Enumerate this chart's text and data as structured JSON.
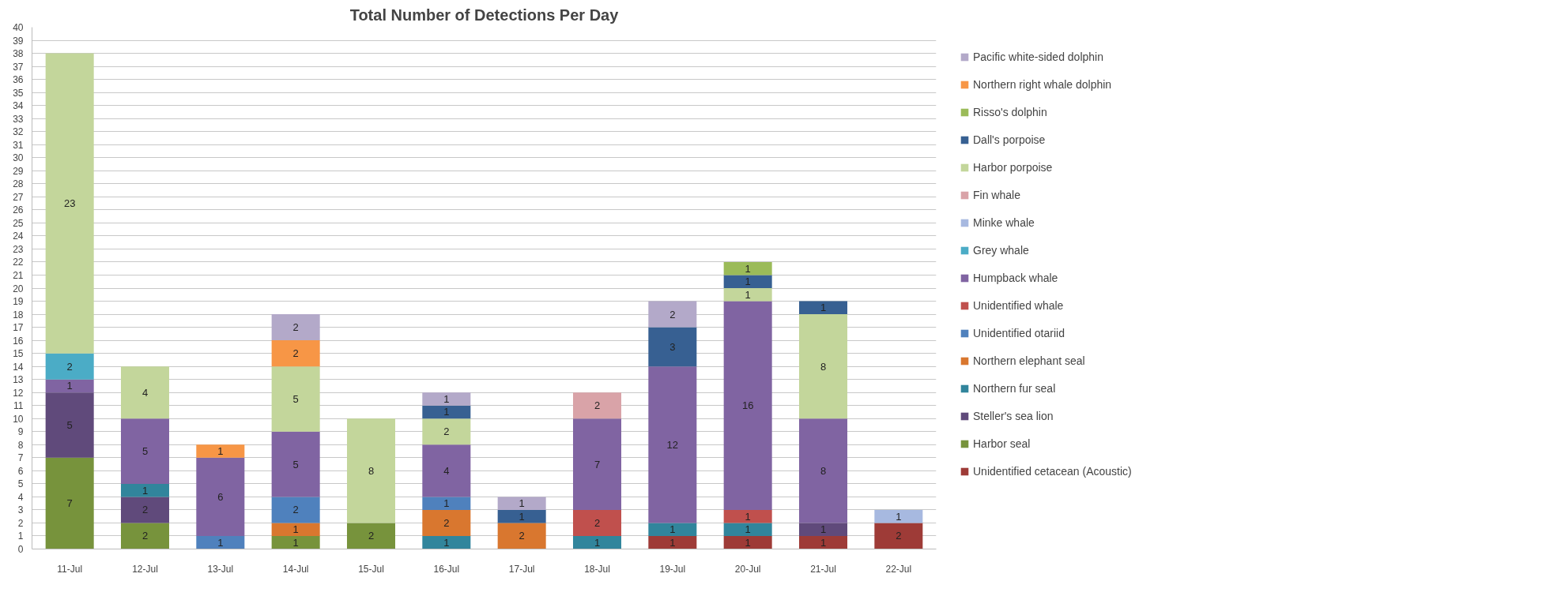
{
  "chart_data": {
    "type": "bar",
    "title": "Total Number of Detections Per Day",
    "stacked": true,
    "data_labels": true,
    "grid": "y",
    "legend": "right",
    "categories": [
      "11-Jul",
      "12-Jul",
      "13-Jul",
      "14-Jul",
      "15-Jul",
      "16-Jul",
      "17-Jul",
      "18-Jul",
      "19-Jul",
      "20-Jul",
      "21-Jul",
      "22-Jul"
    ],
    "ylim": [
      0,
      40
    ],
    "yticks": [
      0,
      1,
      2,
      3,
      4,
      5,
      6,
      7,
      8,
      9,
      10,
      11,
      12,
      13,
      14,
      15,
      16,
      17,
      18,
      19,
      20,
      21,
      22,
      23,
      24,
      25,
      26,
      27,
      28,
      29,
      30,
      31,
      32,
      33,
      34,
      35,
      36,
      37,
      38,
      39,
      40
    ],
    "series": [
      {
        "name": "Unidentified cetacean (Acoustic)",
        "color": "#9e3b37",
        "values": [
          null,
          null,
          null,
          null,
          null,
          null,
          null,
          null,
          1,
          1,
          1,
          2
        ]
      },
      {
        "name": "Harbor seal",
        "color": "#77933c",
        "values": [
          7,
          2,
          null,
          1,
          2,
          null,
          null,
          null,
          null,
          null,
          null,
          null
        ]
      },
      {
        "name": "Steller's sea lion",
        "color": "#604a7b",
        "values": [
          5,
          2,
          null,
          null,
          null,
          null,
          null,
          null,
          null,
          null,
          1,
          null
        ]
      },
      {
        "name": "Northern fur seal",
        "color": "#31859c",
        "values": [
          null,
          1,
          null,
          null,
          null,
          1,
          null,
          1,
          1,
          1,
          null,
          null
        ]
      },
      {
        "name": "Northern elephant seal",
        "color": "#d9772f",
        "values": [
          null,
          null,
          null,
          1,
          null,
          2,
          2,
          null,
          null,
          null,
          null,
          null
        ]
      },
      {
        "name": "Unidentified otariid",
        "color": "#4f81bd",
        "values": [
          null,
          null,
          1,
          2,
          null,
          1,
          null,
          null,
          null,
          null,
          null,
          null
        ]
      },
      {
        "name": "Unidentified whale",
        "color": "#c0504d",
        "values": [
          null,
          null,
          null,
          null,
          null,
          null,
          null,
          2,
          null,
          1,
          null,
          null
        ]
      },
      {
        "name": "Humpback whale",
        "color": "#8064a2",
        "values": [
          1,
          5,
          6,
          5,
          null,
          4,
          null,
          7,
          12,
          16,
          8,
          null
        ]
      },
      {
        "name": "Grey whale",
        "color": "#4bacc6",
        "values": [
          2,
          null,
          null,
          null,
          null,
          null,
          null,
          null,
          null,
          null,
          null,
          null
        ]
      },
      {
        "name": "Minke whale",
        "color": "#a7b9e0",
        "values": [
          null,
          null,
          null,
          null,
          null,
          null,
          null,
          null,
          null,
          null,
          null,
          1
        ]
      },
      {
        "name": "Fin whale",
        "color": "#d9a3a8",
        "values": [
          null,
          null,
          null,
          null,
          null,
          null,
          null,
          2,
          null,
          null,
          null,
          null
        ]
      },
      {
        "name": "Harbor porpoise",
        "color": "#c3d69b",
        "values": [
          23,
          4,
          null,
          5,
          8,
          2,
          null,
          null,
          null,
          1,
          8,
          null
        ]
      },
      {
        "name": "Dall's porpoise",
        "color": "#376092",
        "values": [
          null,
          null,
          null,
          null,
          null,
          1,
          1,
          null,
          3,
          1,
          1,
          null
        ]
      },
      {
        "name": "Risso's dolphin",
        "color": "#9bbb59",
        "values": [
          null,
          null,
          null,
          null,
          null,
          null,
          null,
          null,
          null,
          1,
          null,
          null
        ]
      },
      {
        "name": "Northern right whale dolphin",
        "color": "#f79646",
        "values": [
          null,
          null,
          1,
          2,
          null,
          null,
          null,
          null,
          null,
          null,
          null,
          null
        ]
      },
      {
        "name": "Pacific white-sided dolphin",
        "color": "#b3a9c9",
        "values": [
          null,
          null,
          null,
          2,
          null,
          1,
          1,
          null,
          2,
          null,
          null,
          null
        ]
      }
    ]
  }
}
